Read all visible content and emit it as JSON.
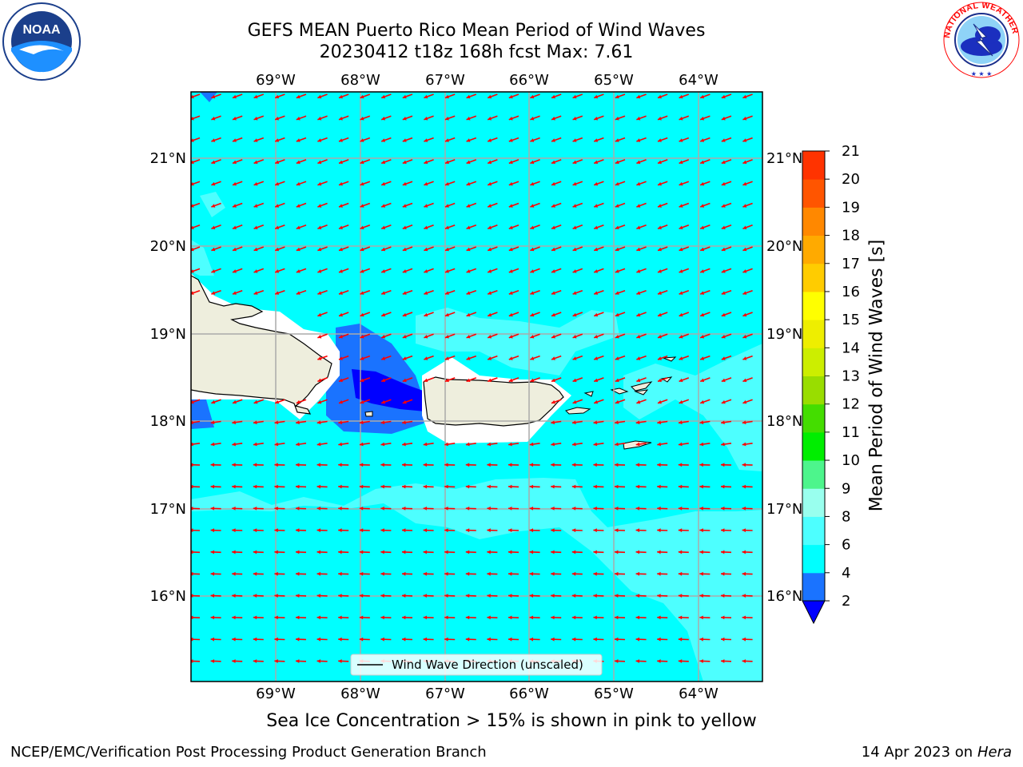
{
  "title": {
    "line1": "GEFS MEAN Puerto Rico Mean Period of Wind Waves",
    "line2": "20230412 t18z 168h fcst   Max: 7.61"
  },
  "logos": {
    "left": {
      "name": "noaa-logo",
      "text": "NOAA"
    },
    "right": {
      "name": "nws-logo",
      "text": "NATIONAL WEATHER SERVICE"
    }
  },
  "map": {
    "lon_ticks": [
      "69°W",
      "68°W",
      "67°W",
      "66°W",
      "65°W",
      "64°W"
    ],
    "lat_ticks": [
      "21°N",
      "20°N",
      "19°N",
      "18°N",
      "17°N",
      "16°N"
    ],
    "legend_label": "Wind Wave Direction (unscaled)",
    "arrow_color": "#ff0000",
    "land_color": "#eeeedd",
    "ocean_color": "#00ffff"
  },
  "colorbar": {
    "label": "Mean Period of Wind Waves [s]",
    "ticks": [
      "2",
      "4",
      "6",
      "8",
      "9",
      "10",
      "11",
      "12",
      "13",
      "14",
      "15",
      "16",
      "17",
      "18",
      "19",
      "20",
      "21"
    ],
    "colors": [
      "#1a73ff",
      "#00ffff",
      "#4dffff",
      "#99ffee",
      "#4df58c",
      "#00ee00",
      "#44dd00",
      "#99dd00",
      "#ccee00",
      "#eeee00",
      "#ffff00",
      "#ffcc00",
      "#ffaa00",
      "#ff8800",
      "#ff5500",
      "#ff3300",
      "#ff0000"
    ],
    "under_color": "#0000ff"
  },
  "subnote": "Sea Ice Concentration > 15% is shown in pink to yellow",
  "footer": {
    "left": "NCEP/EMC/Verification Post Processing Product Generation Branch",
    "right_prefix": "14 Apr 2023 on ",
    "right_host": "Hera"
  }
}
